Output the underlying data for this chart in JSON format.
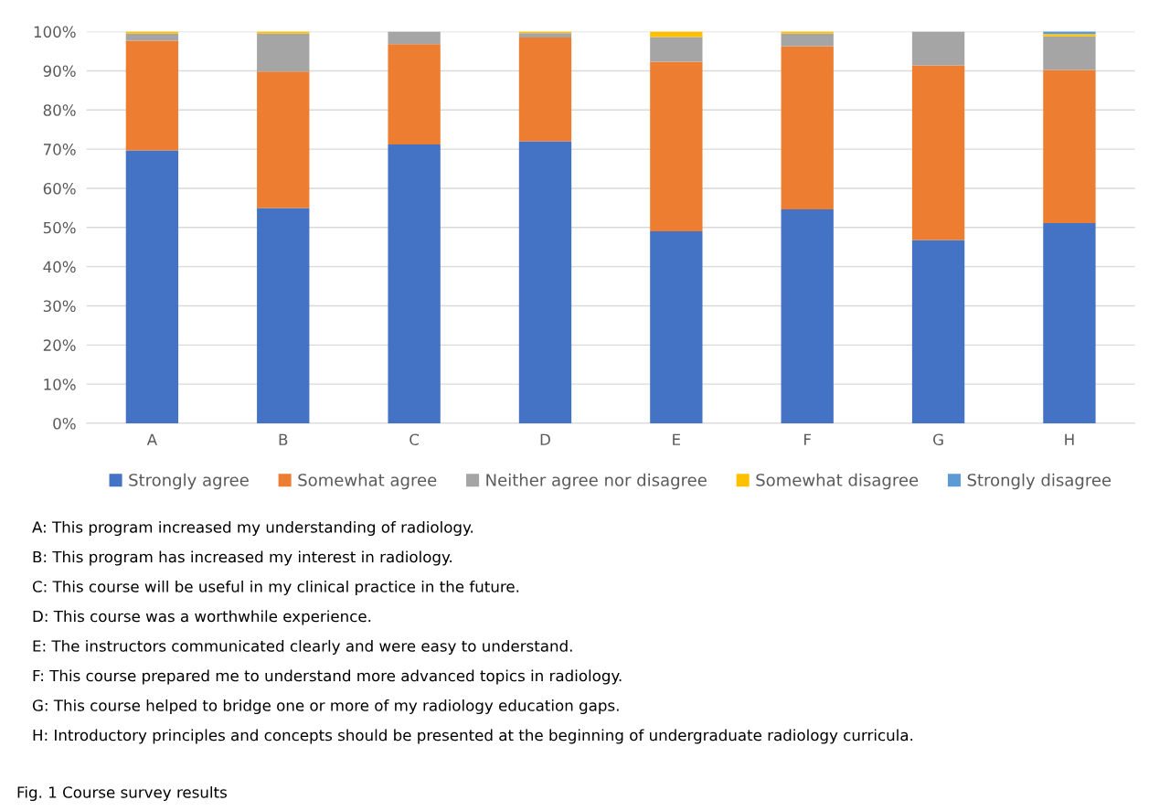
{
  "chart_data": {
    "type": "bar",
    "stacked": true,
    "categories": [
      "A",
      "B",
      "C",
      "D",
      "E",
      "F",
      "G",
      "H"
    ],
    "series": [
      {
        "name": "Strongly agree",
        "color": "#4472c4",
        "values": [
          69.7,
          55,
          71.2,
          72,
          49,
          54.6,
          46.8,
          51.1
        ]
      },
      {
        "name": "Somewhat agree",
        "color": "#ed7d31",
        "values": [
          28,
          34.8,
          25.6,
          26.5,
          43.3,
          41.7,
          44.6,
          39.1
        ]
      },
      {
        "name": "Neither agree nor disagree",
        "color": "#a5a5a5",
        "values": [
          1.8,
          9.7,
          3.2,
          1.1,
          6.3,
          3.2,
          8.6,
          8.6
        ]
      },
      {
        "name": "Somewhat disagree",
        "color": "#ffc000",
        "values": [
          0.5,
          0.5,
          0,
          0.4,
          1.4,
          0.5,
          0,
          0.6
        ]
      },
      {
        "name": "Strongly disagree",
        "color": "#5b9bd5",
        "values": [
          0,
          0,
          0,
          0,
          0,
          0,
          0,
          0.7
        ]
      }
    ],
    "ylim": [
      0,
      100
    ],
    "yticks": [
      {
        "value": 0,
        "label": "0%"
      },
      {
        "value": 10,
        "label": "10%"
      },
      {
        "value": 20,
        "label": "20%"
      },
      {
        "value": 30,
        "label": "30%"
      },
      {
        "value": 40,
        "label": "40%"
      },
      {
        "value": 50,
        "label": "50%"
      },
      {
        "value": 60,
        "label": "60%"
      },
      {
        "value": 70,
        "label": "70%"
      },
      {
        "value": 80,
        "label": "80%"
      },
      {
        "value": 90,
        "label": "90%"
      },
      {
        "value": 100,
        "label": "100%"
      }
    ],
    "grid": "y",
    "legend": "bottom",
    "annotations": [
      "A: This program increased my understanding of radiology.",
      "B: This program has increased my interest in radiology.",
      "C: This course will be useful in my clinical practice in the future.",
      "D: This course was a worthwhile experience.",
      "E: The instructors communicated clearly and were easy to understand.",
      "F: This course prepared me to understand more advanced topics in radiology.",
      "G: This course helped to bridge one or more of my radiology education gaps.",
      "H: Introductory principles and concepts should be presented at the beginning of undergraduate radiology curricula.",
      "Fig. 1 Course survey results"
    ]
  }
}
